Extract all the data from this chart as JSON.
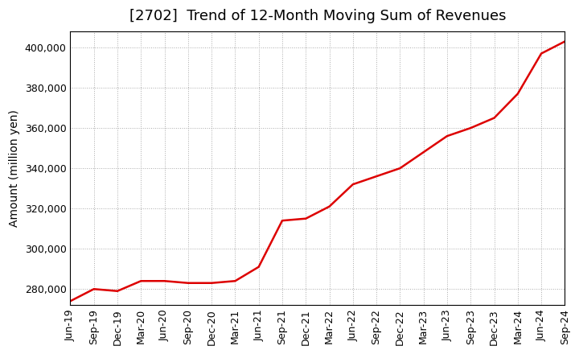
{
  "title": "[2702]  Trend of 12-Month Moving Sum of Revenues",
  "ylabel": "Amount (million yen)",
  "background_color": "#ffffff",
  "plot_bg_color": "#ffffff",
  "grid_color": "#aaaaaa",
  "line_color": "#dd0000",
  "ylim": [
    272000,
    408000
  ],
  "yticks": [
    280000,
    300000,
    320000,
    340000,
    360000,
    380000,
    400000
  ],
  "x_labels": [
    "Jun-19",
    "Sep-19",
    "Dec-19",
    "Mar-20",
    "Jun-20",
    "Sep-20",
    "Dec-20",
    "Mar-21",
    "Jun-21",
    "Sep-21",
    "Dec-21",
    "Mar-22",
    "Jun-22",
    "Sep-22",
    "Dec-22",
    "Mar-23",
    "Jun-23",
    "Sep-23",
    "Dec-23",
    "Mar-24",
    "Jun-24",
    "Sep-24"
  ],
  "values": [
    274000,
    280000,
    279000,
    284000,
    284000,
    283000,
    283000,
    284000,
    291000,
    314000,
    315000,
    321000,
    332000,
    336000,
    340000,
    348000,
    356000,
    360000,
    365000,
    377000,
    397000,
    403000
  ],
  "title_fontsize": 13,
  "label_fontsize": 10,
  "tick_fontsize": 9
}
